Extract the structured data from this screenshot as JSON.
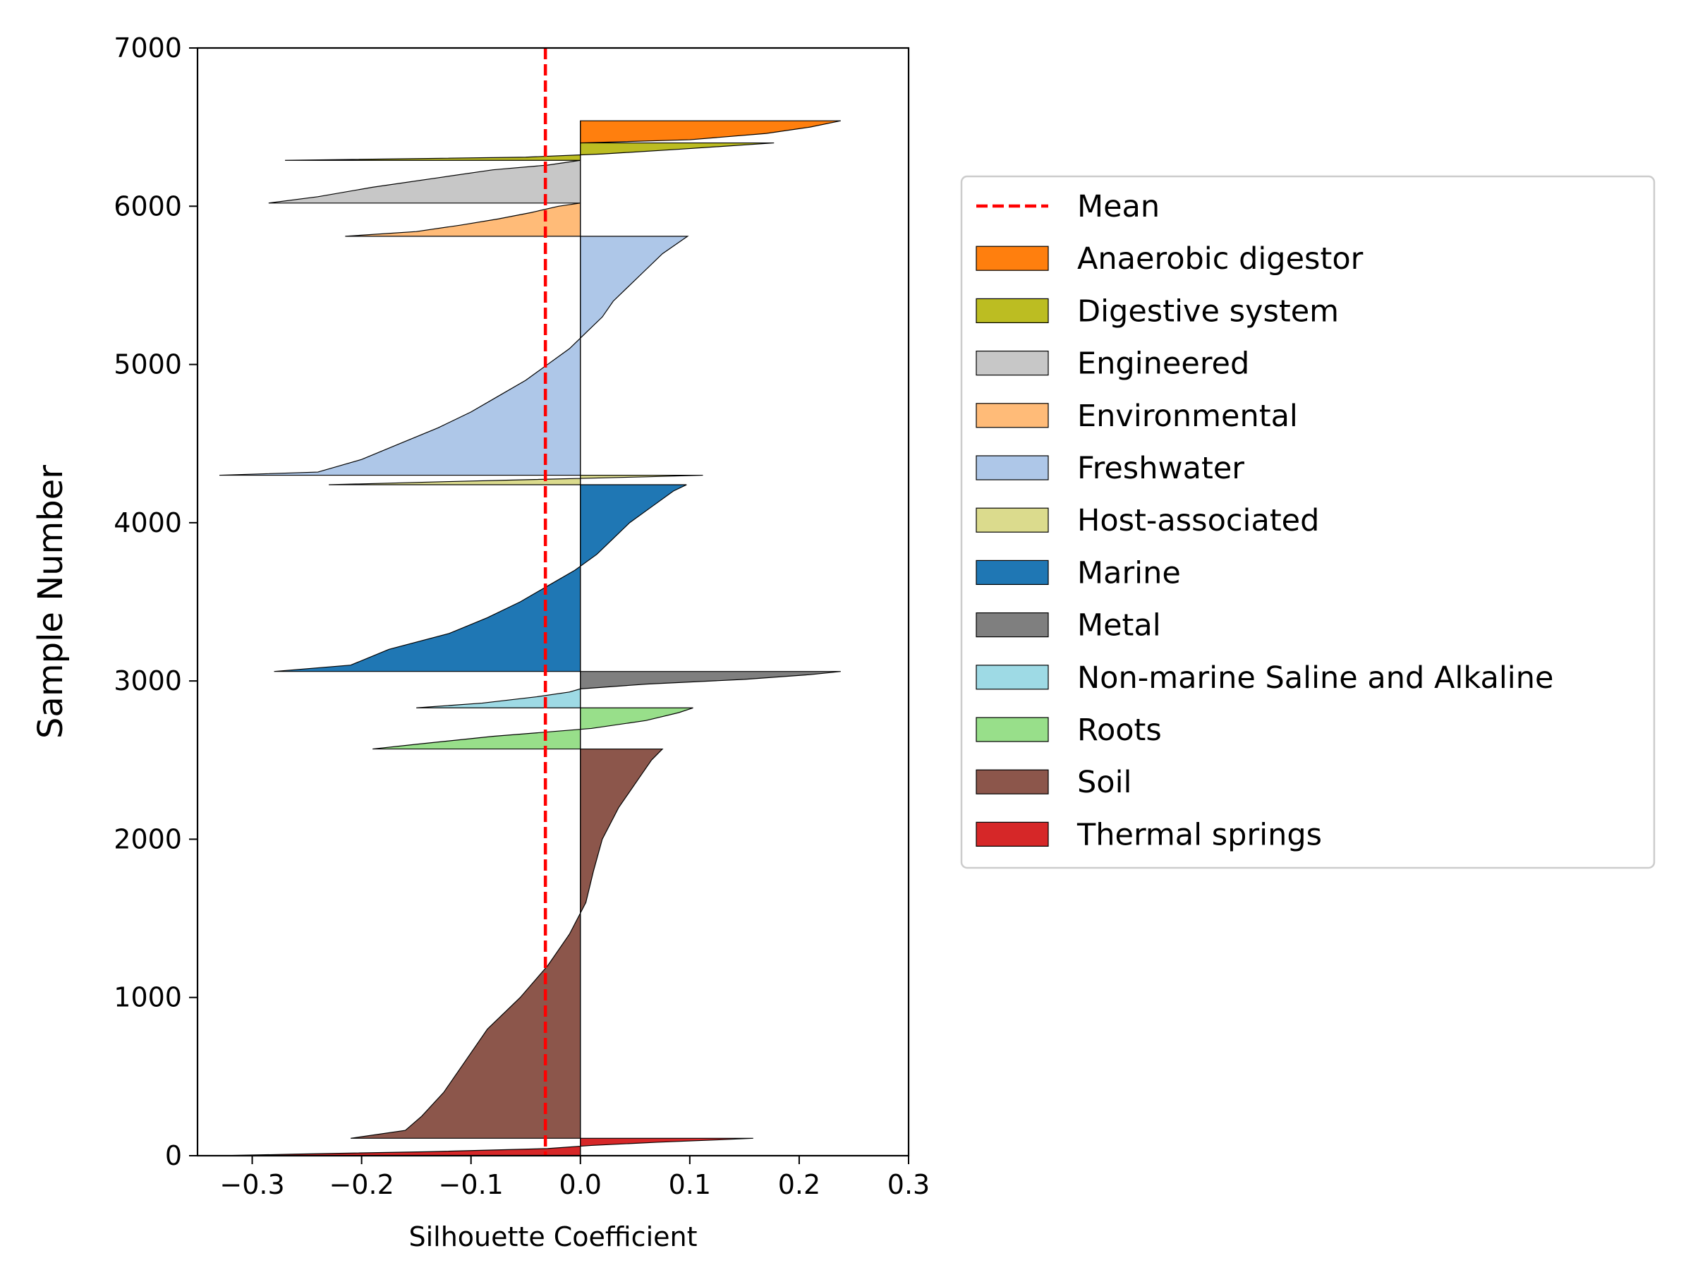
{
  "chart_data": {
    "type": "silhouette",
    "title": "",
    "xlabel": "Silhouette Coefficient",
    "ylabel": "Sample Number",
    "xlim": [
      -0.35,
      0.3
    ],
    "ylim": [
      0,
      7000
    ],
    "x_ticks": [
      -0.3,
      -0.2,
      -0.1,
      0.0,
      0.1,
      0.2,
      0.3
    ],
    "x_tick_labels": [
      "−0.3",
      "−0.2",
      "−0.1",
      "0.0",
      "0.1",
      "0.2",
      "0.3"
    ],
    "y_ticks": [
      0,
      1000,
      2000,
      3000,
      4000,
      5000,
      6000,
      7000
    ],
    "y_tick_labels": [
      "0",
      "1000",
      "2000",
      "3000",
      "4000",
      "5000",
      "6000",
      "7000"
    ],
    "grid": false,
    "legend_position": "right",
    "mean_line": {
      "label": "Mean",
      "value": -0.032,
      "color": "#ff0000"
    },
    "series": [
      {
        "name": "Thermal springs",
        "color": "#d62728",
        "y_start": 0,
        "y_end": 110,
        "profile": [
          [
            0,
            -0.33
          ],
          [
            10,
            -0.26
          ],
          [
            25,
            -0.14
          ],
          [
            45,
            -0.03
          ],
          [
            65,
            0.01
          ],
          [
            85,
            0.07
          ],
          [
            100,
            0.125
          ],
          [
            110,
            0.158
          ]
        ]
      },
      {
        "name": "Soil",
        "color": "#8c564b",
        "y_start": 110,
        "y_end": 2570,
        "profile": [
          [
            110,
            -0.21
          ],
          [
            160,
            -0.16
          ],
          [
            250,
            -0.145
          ],
          [
            400,
            -0.125
          ],
          [
            600,
            -0.105
          ],
          [
            800,
            -0.085
          ],
          [
            1000,
            -0.055
          ],
          [
            1200,
            -0.03
          ],
          [
            1400,
            -0.01
          ],
          [
            1600,
            0.005
          ],
          [
            1800,
            0.012
          ],
          [
            2000,
            0.02
          ],
          [
            2200,
            0.035
          ],
          [
            2400,
            0.055
          ],
          [
            2500,
            0.065
          ],
          [
            2570,
            0.075
          ]
        ]
      },
      {
        "name": "Roots",
        "color": "#98df8a",
        "y_start": 2570,
        "y_end": 2830,
        "profile": [
          [
            2570,
            -0.19
          ],
          [
            2600,
            -0.15
          ],
          [
            2650,
            -0.08
          ],
          [
            2700,
            0.01
          ],
          [
            2750,
            0.06
          ],
          [
            2800,
            0.09
          ],
          [
            2830,
            0.103
          ]
        ]
      },
      {
        "name": "Non-marine Saline and Alkaline",
        "color": "#9edae5",
        "y_start": 2830,
        "y_end": 2950,
        "profile": [
          [
            2830,
            -0.15
          ],
          [
            2860,
            -0.09
          ],
          [
            2900,
            -0.04
          ],
          [
            2930,
            -0.01
          ],
          [
            2950,
            0.0
          ]
        ]
      },
      {
        "name": "Metal",
        "color": "#7f7f7f",
        "y_start": 2950,
        "y_end": 3060,
        "profile": [
          [
            2950,
            0.0
          ],
          [
            2980,
            0.06
          ],
          [
            3010,
            0.15
          ],
          [
            3040,
            0.21
          ],
          [
            3060,
            0.238
          ]
        ]
      },
      {
        "name": "Marine",
        "color": "#1f77b4",
        "y_start": 3060,
        "y_end": 4240,
        "profile": [
          [
            3060,
            -0.28
          ],
          [
            3100,
            -0.21
          ],
          [
            3200,
            -0.175
          ],
          [
            3300,
            -0.12
          ],
          [
            3400,
            -0.085
          ],
          [
            3500,
            -0.055
          ],
          [
            3600,
            -0.03
          ],
          [
            3700,
            -0.005
          ],
          [
            3800,
            0.015
          ],
          [
            3900,
            0.03
          ],
          [
            4000,
            0.045
          ],
          [
            4100,
            0.065
          ],
          [
            4200,
            0.085
          ],
          [
            4240,
            0.097
          ]
        ]
      },
      {
        "name": "Host-associated",
        "color": "#dbdb8d",
        "y_start": 4240,
        "y_end": 4300,
        "profile": [
          [
            4240,
            -0.23
          ],
          [
            4260,
            -0.12
          ],
          [
            4280,
            0.0
          ],
          [
            4290,
            0.06
          ],
          [
            4300,
            0.112
          ]
        ]
      },
      {
        "name": "Freshwater",
        "color": "#aec7e8",
        "y_start": 4300,
        "y_end": 5810,
        "profile": [
          [
            4300,
            -0.33
          ],
          [
            4320,
            -0.24
          ],
          [
            4400,
            -0.2
          ],
          [
            4500,
            -0.165
          ],
          [
            4600,
            -0.13
          ],
          [
            4700,
            -0.1
          ],
          [
            4800,
            -0.075
          ],
          [
            4900,
            -0.05
          ],
          [
            5000,
            -0.03
          ],
          [
            5100,
            -0.01
          ],
          [
            5200,
            0.005
          ],
          [
            5300,
            0.02
          ],
          [
            5400,
            0.03
          ],
          [
            5500,
            0.045
          ],
          [
            5600,
            0.06
          ],
          [
            5700,
            0.075
          ],
          [
            5810,
            0.098
          ]
        ]
      },
      {
        "name": "Environmental",
        "color": "#ffbb78",
        "y_start": 5810,
        "y_end": 6020,
        "profile": [
          [
            5810,
            -0.215
          ],
          [
            5840,
            -0.15
          ],
          [
            5880,
            -0.11
          ],
          [
            5920,
            -0.075
          ],
          [
            5960,
            -0.045
          ],
          [
            6000,
            -0.02
          ],
          [
            6020,
            0.0
          ]
        ]
      },
      {
        "name": "Engineered",
        "color": "#c7c7c7",
        "y_start": 6020,
        "y_end": 6290,
        "profile": [
          [
            6020,
            -0.285
          ],
          [
            6060,
            -0.24
          ],
          [
            6120,
            -0.19
          ],
          [
            6180,
            -0.13
          ],
          [
            6230,
            -0.08
          ],
          [
            6260,
            -0.03
          ],
          [
            6290,
            0.0
          ]
        ]
      },
      {
        "name": "Digestive system",
        "color": "#bcbd22",
        "y_start": 6290,
        "y_end": 6400,
        "profile": [
          [
            6290,
            -0.27
          ],
          [
            6310,
            -0.05
          ],
          [
            6330,
            0.02
          ],
          [
            6360,
            0.09
          ],
          [
            6400,
            0.177
          ]
        ]
      },
      {
        "name": "Anaerobic digestor",
        "color": "#ff7f0e",
        "y_start": 6400,
        "y_end": 6540,
        "profile": [
          [
            6400,
            0.0
          ],
          [
            6420,
            0.1
          ],
          [
            6460,
            0.17
          ],
          [
            6500,
            0.21
          ],
          [
            6540,
            0.238
          ]
        ]
      }
    ],
    "legend": [
      "Mean",
      "Anaerobic digestor",
      "Digestive system",
      "Engineered",
      "Environmental",
      "Freshwater",
      "Host-associated",
      "Marine",
      "Metal",
      "Non-marine Saline and Alkaline",
      "Roots",
      "Soil",
      "Thermal springs"
    ]
  }
}
